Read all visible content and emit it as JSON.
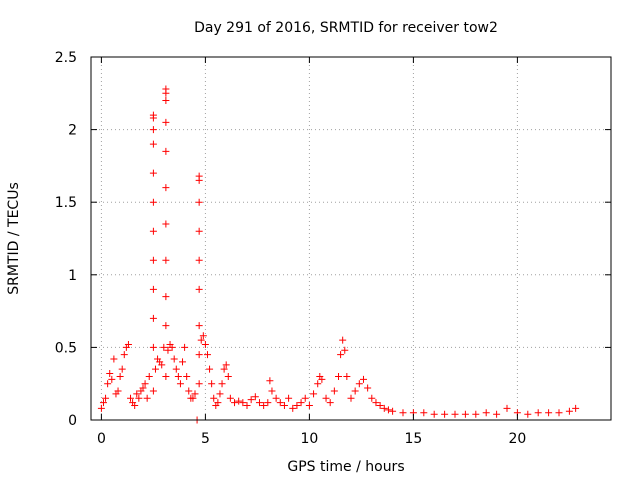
{
  "chart_data": {
    "type": "scatter",
    "title": "Day 291 of 2016, SRMTID for receiver tow2",
    "xlabel": "GPS time / hours",
    "ylabel": "SRMTID / TECUs",
    "xlim": [
      -0.5,
      24.5
    ],
    "ylim": [
      0,
      2.5
    ],
    "xticks": [
      "0",
      "5",
      "10",
      "15",
      "20"
    ],
    "xtick_values": [
      0,
      5,
      10,
      15,
      20
    ],
    "yticks": [
      "0",
      "0.5",
      "1",
      "1.5",
      "2",
      "2.5"
    ],
    "ytick_values": [
      0,
      0.5,
      1,
      1.5,
      2,
      2.5
    ],
    "grid": true,
    "marker": "+",
    "color": "#ff0000",
    "series": [
      {
        "name": "SRMTID",
        "x": [
          0.0,
          0.1,
          0.2,
          0.3,
          0.4,
          0.5,
          0.6,
          0.7,
          0.8,
          0.9,
          1.0,
          1.1,
          1.2,
          1.3,
          1.4,
          1.5,
          1.6,
          1.7,
          1.8,
          1.9,
          2.0,
          2.1,
          2.2,
          2.3,
          2.5,
          2.5,
          2.5,
          2.5,
          2.5,
          2.5,
          2.5,
          2.5,
          2.5,
          2.5,
          2.5,
          2.5,
          2.6,
          2.7,
          2.8,
          2.9,
          3.0,
          3.1,
          3.1,
          3.1,
          3.1,
          3.1,
          3.1,
          3.1,
          3.1,
          3.1,
          3.1,
          3.1,
          3.2,
          3.3,
          3.4,
          3.5,
          3.6,
          3.7,
          3.8,
          3.9,
          4.0,
          4.1,
          4.2,
          4.3,
          4.4,
          4.5,
          4.6,
          4.7,
          4.7,
          4.7,
          4.7,
          4.7,
          4.7,
          4.7,
          4.7,
          4.7,
          4.8,
          4.9,
          5.0,
          5.1,
          5.2,
          5.3,
          5.4,
          5.5,
          5.6,
          5.7,
          5.8,
          5.9,
          6.0,
          6.1,
          6.2,
          6.4,
          6.6,
          6.8,
          7.0,
          7.2,
          7.4,
          7.6,
          7.8,
          8.0,
          8.1,
          8.2,
          8.4,
          8.6,
          8.8,
          9.0,
          9.2,
          9.4,
          9.6,
          9.8,
          10.0,
          10.2,
          10.4,
          10.5,
          10.6,
          10.8,
          11.0,
          11.2,
          11.4,
          11.5,
          11.6,
          11.7,
          11.8,
          12.0,
          12.2,
          12.4,
          12.6,
          12.8,
          13.0,
          13.2,
          13.4,
          13.6,
          13.8,
          14.0,
          14.5,
          15.0,
          15.5,
          16.0,
          16.5,
          17.0,
          17.5,
          18.0,
          18.5,
          19.0,
          19.5,
          20.0,
          20.5,
          21.0,
          21.5,
          22.0,
          22.5,
          22.8
        ],
        "y": [
          0.08,
          0.12,
          0.15,
          0.25,
          0.32,
          0.28,
          0.42,
          0.18,
          0.2,
          0.3,
          0.35,
          0.45,
          0.5,
          0.52,
          0.15,
          0.12,
          0.1,
          0.18,
          0.15,
          0.2,
          0.22,
          0.25,
          0.15,
          0.3,
          0.2,
          0.5,
          0.7,
          0.9,
          1.1,
          1.3,
          1.5,
          1.7,
          1.9,
          2.0,
          2.08,
          2.1,
          0.35,
          0.42,
          0.4,
          0.38,
          0.5,
          0.65,
          0.85,
          1.1,
          1.35,
          1.6,
          1.85,
          2.05,
          2.2,
          2.25,
          2.28,
          0.3,
          0.48,
          0.52,
          0.5,
          0.42,
          0.35,
          0.3,
          0.25,
          0.4,
          0.5,
          0.3,
          0.2,
          0.15,
          0.15,
          0.18,
          0.0,
          0.25,
          0.45,
          0.65,
          0.9,
          1.1,
          1.3,
          1.5,
          1.65,
          1.68,
          0.55,
          0.58,
          0.52,
          0.45,
          0.35,
          0.25,
          0.15,
          0.1,
          0.12,
          0.18,
          0.25,
          0.35,
          0.38,
          0.3,
          0.15,
          0.12,
          0.13,
          0.12,
          0.1,
          0.14,
          0.16,
          0.12,
          0.1,
          0.12,
          0.27,
          0.2,
          0.15,
          0.12,
          0.1,
          0.15,
          0.08,
          0.1,
          0.12,
          0.15,
          0.1,
          0.18,
          0.25,
          0.3,
          0.28,
          0.15,
          0.12,
          0.2,
          0.3,
          0.45,
          0.55,
          0.48,
          0.3,
          0.15,
          0.2,
          0.25,
          0.28,
          0.22,
          0.15,
          0.12,
          0.1,
          0.08,
          0.07,
          0.06,
          0.05,
          0.05,
          0.05,
          0.04,
          0.04,
          0.04,
          0.04,
          0.04,
          0.05,
          0.04,
          0.08,
          0.05,
          0.04,
          0.05,
          0.05,
          0.05,
          0.06,
          0.08
        ]
      }
    ]
  }
}
